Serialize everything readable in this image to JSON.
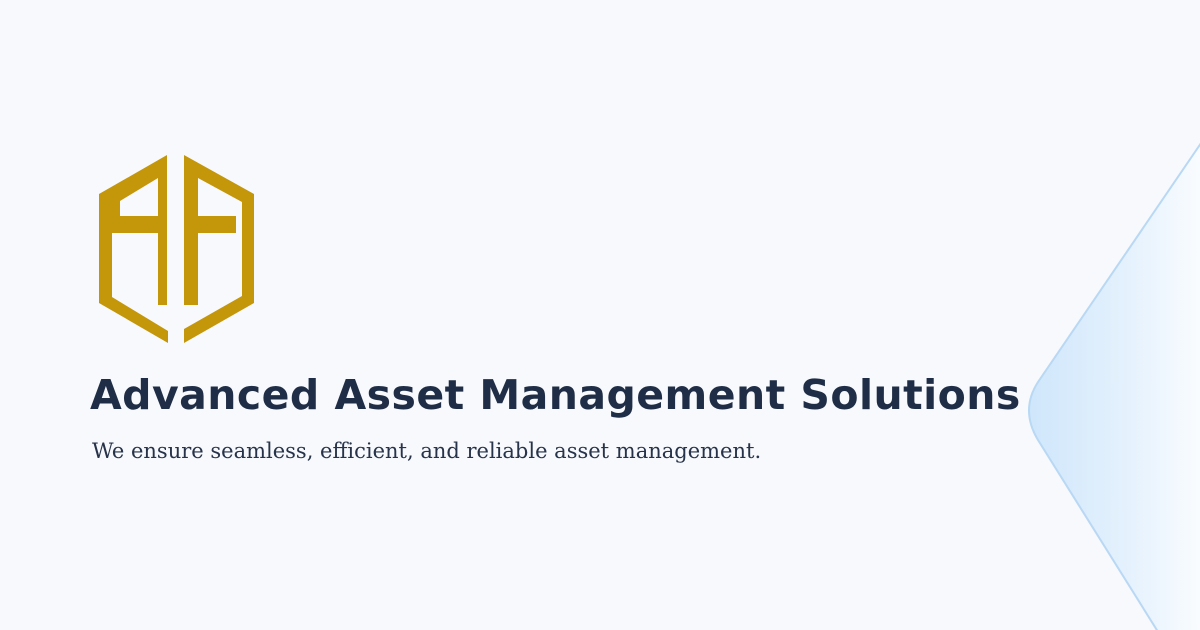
{
  "hero": {
    "logo_icon": "hexagon-aa-monogram-icon",
    "headline": "Advanced Asset Management Solutions",
    "subheadline": "We ensure seamless, efficient, and reliable asset management."
  },
  "decoration": {
    "icon": "chevron-shape-icon"
  },
  "colors": {
    "background": "#f7f9fc",
    "logo_gold": "#c4960a",
    "headline": "#1f2d46",
    "subheadline": "#27334a",
    "accent_blue": "#cfe6fb"
  }
}
